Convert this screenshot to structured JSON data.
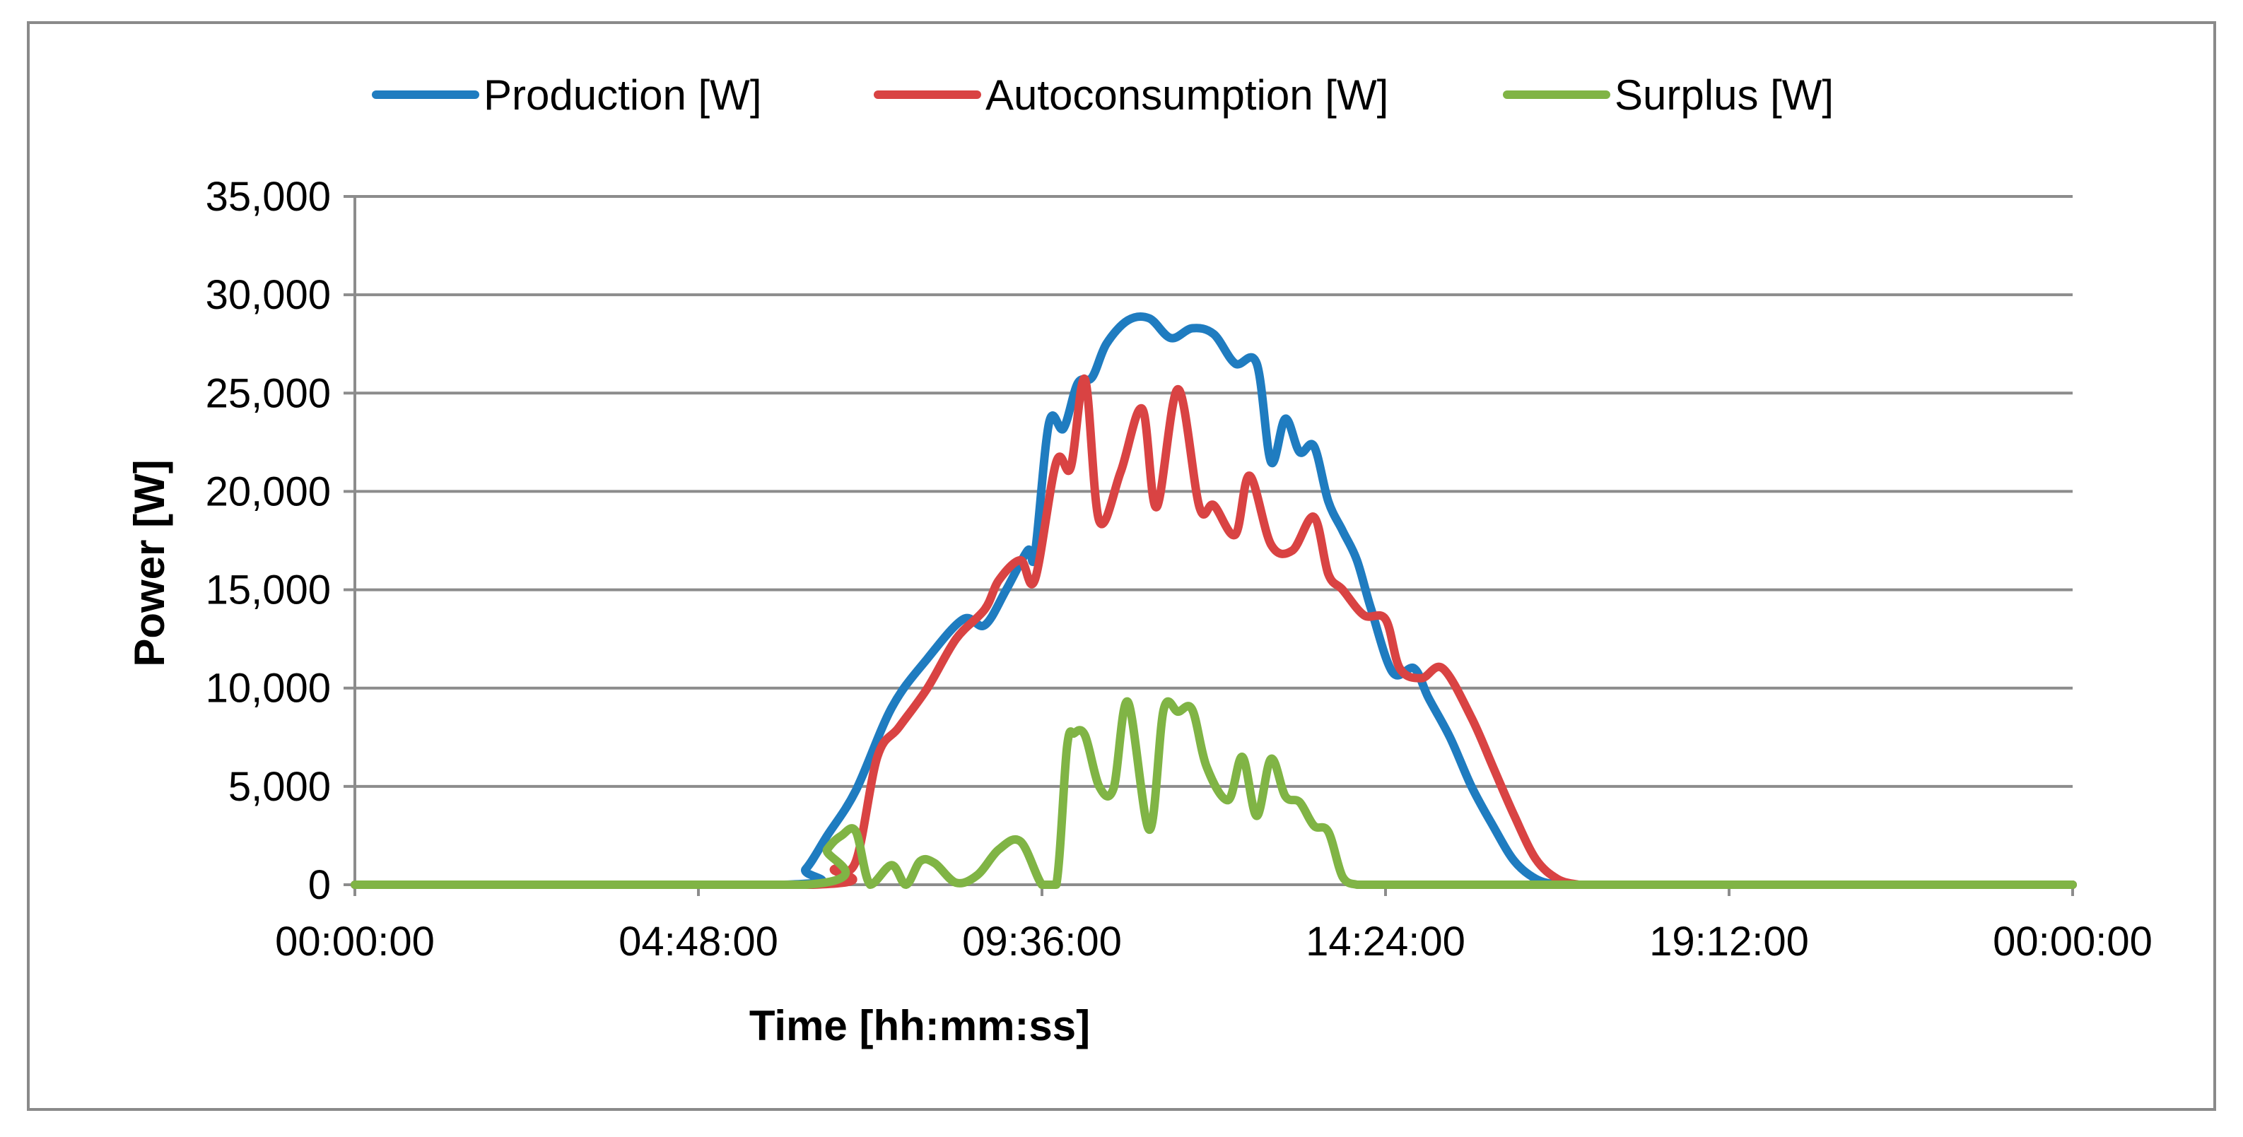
{
  "chart_data": {
    "type": "line",
    "title": "",
    "xlabel": "Time [hh:mm:ss]",
    "ylabel": "Power [W]",
    "xlim_hours": [
      0,
      24
    ],
    "ylim": [
      0,
      35000
    ],
    "grid": true,
    "legend_position": "top",
    "x_tick_hours": [
      0,
      4.8,
      9.6,
      14.4,
      19.2,
      24
    ],
    "x_tick_labels": [
      "00:00:00",
      "04:48:00",
      "09:36:00",
      "14:24:00",
      "19:12:00",
      "00:00:00"
    ],
    "y_ticks": [
      0,
      5000,
      10000,
      15000,
      20000,
      25000,
      30000,
      35000
    ],
    "y_tick_labels": [
      "0",
      "5,000",
      "10,000",
      "15,000",
      "20,000",
      "25,000",
      "30,000",
      "35,000"
    ],
    "series": [
      {
        "name": "Production [W]",
        "color": "#1f7cc0",
        "x_hours": [
          0,
          6.0,
          6.3,
          6.6,
          7.0,
          7.5,
          8.0,
          8.5,
          8.8,
          9.1,
          9.4,
          9.5,
          9.7,
          9.9,
          10.1,
          10.3,
          10.5,
          10.8,
          11.1,
          11.4,
          11.7,
          12.0,
          12.3,
          12.6,
          12.8,
          13.0,
          13.2,
          13.4,
          13.6,
          13.8,
          14.0,
          14.2,
          14.5,
          14.8,
          15.0,
          15.3,
          15.6,
          15.9,
          16.2,
          16.5,
          16.8,
          17.1,
          17.4,
          17.6,
          18.0,
          24
        ],
        "values": [
          0,
          0,
          800,
          2500,
          4800,
          9000,
          11500,
          13500,
          13200,
          15000,
          17000,
          16800,
          23500,
          23200,
          25500,
          25800,
          27500,
          28700,
          28800,
          27800,
          28300,
          28000,
          26500,
          26500,
          21500,
          23700,
          22000,
          22300,
          19500,
          18000,
          16500,
          14000,
          10800,
          11000,
          9500,
          7500,
          5000,
          3000,
          1200,
          300,
          0,
          0,
          0,
          0,
          0,
          0
        ]
      },
      {
        "name": "Autoconsumption [W]",
        "color": "#d94343",
        "x_hours": [
          0,
          6.4,
          6.7,
          7.0,
          7.3,
          7.6,
          8.0,
          8.4,
          8.8,
          9.0,
          9.3,
          9.5,
          9.8,
          10.0,
          10.2,
          10.4,
          10.7,
          11.0,
          11.2,
          11.5,
          11.8,
          12.0,
          12.3,
          12.5,
          12.8,
          13.1,
          13.4,
          13.6,
          13.8,
          14.1,
          14.4,
          14.6,
          14.9,
          15.2,
          15.6,
          15.9,
          16.2,
          16.5,
          16.8,
          17.1,
          17.3,
          24
        ],
        "values": [
          0,
          0,
          800,
          1200,
          6500,
          8000,
          10000,
          12500,
          14000,
          15500,
          16500,
          15500,
          21500,
          21200,
          25700,
          18500,
          21000,
          24200,
          19200,
          25200,
          19200,
          19300,
          17800,
          20800,
          17300,
          17000,
          18700,
          15800,
          15000,
          13700,
          13500,
          11000,
          10500,
          11000,
          8500,
          6000,
          3500,
          1300,
          300,
          0,
          0,
          0
        ]
      },
      {
        "name": "Surplus [W]",
        "color": "#80b445",
        "x_hours": [
          0,
          6.3,
          6.6,
          6.8,
          7.0,
          7.2,
          7.5,
          7.7,
          7.9,
          8.1,
          8.4,
          8.7,
          9.0,
          9.3,
          9.6,
          9.8,
          9.95,
          10.05,
          10.2,
          10.4,
          10.6,
          10.8,
          11.1,
          11.3,
          11.5,
          11.7,
          11.9,
          12.2,
          12.4,
          12.6,
          12.8,
          13.0,
          13.2,
          13.4,
          13.6,
          13.8,
          14.0,
          14.2,
          14.4,
          14.6,
          14.9,
          15.2,
          15.4,
          24
        ],
        "values": [
          0,
          0,
          1800,
          2500,
          2700,
          0,
          1000,
          0,
          1200,
          1100,
          100,
          500,
          1800,
          2200,
          0,
          0,
          7000,
          7700,
          7600,
          5000,
          4900,
          9300,
          2800,
          8900,
          8800,
          8900,
          6000,
          4300,
          6500,
          3500,
          6400,
          4500,
          4200,
          3000,
          2700,
          400,
          0,
          0,
          0,
          0,
          0,
          0,
          0,
          0
        ]
      }
    ]
  }
}
